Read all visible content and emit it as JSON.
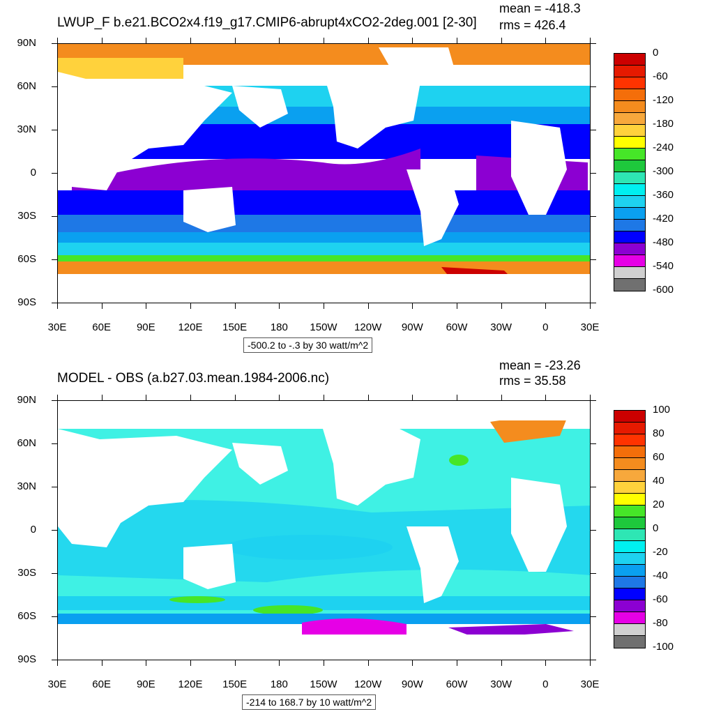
{
  "panel_top": {
    "title": "LWUP_F b.e21.BCO2x4.f19_g17.CMIP6-abrupt4xCO2-2deg.001 [2-30]",
    "mean": "mean = -418.3",
    "rms": "rms = 426.4",
    "range": "-500.2 to -.3 by 30 watt/m^2",
    "colorbar": {
      "colors": [
        "#cc0000",
        "#e61a00",
        "#ff3300",
        "#f46e0a",
        "#f48c1e",
        "#f7a83c",
        "#ffd23c",
        "#ffff00",
        "#46e628",
        "#1ec83c",
        "#2ee6b4",
        "#00f0f0",
        "#1ed2f0",
        "#0aa0f0",
        "#1e78e6",
        "#0000ff",
        "#8c00d2",
        "#e600e6",
        "#d0d0d0",
        "#707070"
      ],
      "labels": [
        "0",
        "-60",
        "-120",
        "-180",
        "-240",
        "-300",
        "-360",
        "-420",
        "-480",
        "-540",
        "-600"
      ]
    }
  },
  "panel_bottom": {
    "title": "MODEL - OBS (a.b27.03.mean.1984-2006.nc)",
    "mean": "mean = -23.26",
    "rms": "rms = 35.58",
    "range": "-214 to 168.7 by 10 watt/m^2",
    "colorbar": {
      "colors": [
        "#cc0000",
        "#e61a00",
        "#ff3300",
        "#f46e0a",
        "#f48c1e",
        "#f7a83c",
        "#ffd23c",
        "#ffff00",
        "#46e628",
        "#1ec83c",
        "#2ee6b4",
        "#00f0f0",
        "#1ed2f0",
        "#0aa0f0",
        "#1e78e6",
        "#0000ff",
        "#8c00d2",
        "#e600e6",
        "#d0d0d0",
        "#707070"
      ],
      "labels": [
        "100",
        "80",
        "60",
        "40",
        "20",
        "0",
        "-20",
        "-40",
        "-60",
        "-80",
        "-100"
      ]
    }
  },
  "lat_labels": [
    "90N",
    "60N",
    "30N",
    "0",
    "30S",
    "60S",
    "90S"
  ],
  "lon_labels": [
    "30E",
    "60E",
    "90E",
    "120E",
    "150E",
    "180",
    "150W",
    "120W",
    "90W",
    "60W",
    "30W",
    "0",
    "30E"
  ]
}
